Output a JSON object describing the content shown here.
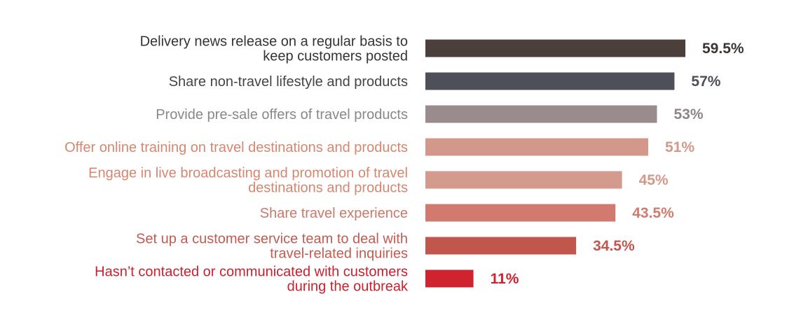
{
  "chart_data": {
    "type": "bar",
    "orientation": "horizontal",
    "categories": [
      [
        "Delivery news release on a regular basis to",
        "keep customers posted"
      ],
      [
        "Share non-travel lifestyle and products"
      ],
      [
        "Provide pre-sale offers of travel products"
      ],
      [
        "Offer online training on travel destinations and products"
      ],
      [
        "Engage in live broadcasting and promotion of travel",
        "destinations and products"
      ],
      [
        "Share travel experience"
      ],
      [
        "Set up a customer service team to deal with",
        "travel-related inquiries"
      ],
      [
        "Hasn’t contacted or communicated with customers",
        "during the outbreak"
      ]
    ],
    "values": [
      59.5,
      57,
      53,
      51,
      45,
      43.5,
      34.5,
      11
    ],
    "value_labels": [
      "59.5%",
      "57%",
      "53%",
      "51%",
      "45%",
      "43.5%",
      "34.5%",
      "11%"
    ],
    "colors": [
      "#4a3f3b",
      "#4d5059",
      "#9a8c8c",
      "#d4988a",
      "#d49a8d",
      "#d27a70",
      "#c0564d",
      "#d0222f"
    ],
    "label_colors": [
      "#333333",
      "#444444",
      "#888888",
      "#d4876f",
      "#d4876f",
      "#c97a6a",
      "#c25b52",
      "#c8212e"
    ],
    "value_label_colors": [
      "#3c3532",
      "#4d5059",
      "#8f8587",
      "#d4988a",
      "#d4988a",
      "#d27a70",
      "#c0564d",
      "#d0222f"
    ],
    "xlim": [
      0,
      60
    ],
    "grid": false,
    "title": "",
    "xlabel": "",
    "ylabel": ""
  }
}
